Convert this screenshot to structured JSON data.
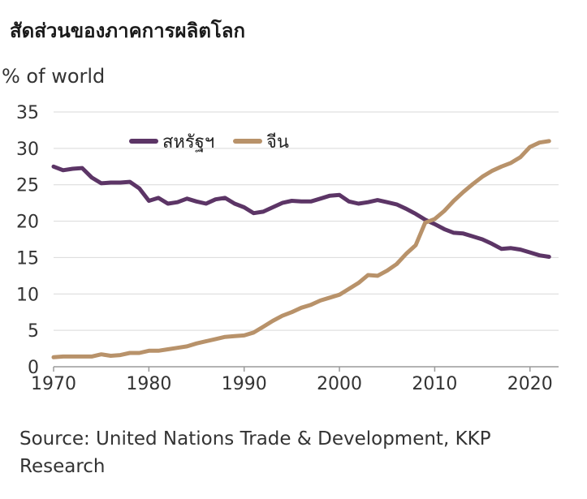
{
  "title": "สัดส่วนของภาคการผลิตโลก",
  "ylabel": "% of world",
  "source": "Source: United Nations Trade & Development, KKP Research",
  "chart_data": {
    "type": "line",
    "xlim": [
      1970,
      2023
    ],
    "ylim": [
      0,
      35
    ],
    "x_ticks": [
      1970,
      1980,
      1990,
      2000,
      2010,
      2020
    ],
    "y_ticks": [
      0,
      5,
      10,
      15,
      20,
      25,
      30,
      35
    ],
    "grid": "horizontal",
    "legend_position": "top-center",
    "x": [
      1970,
      1971,
      1972,
      1973,
      1974,
      1975,
      1976,
      1977,
      1978,
      1979,
      1980,
      1981,
      1982,
      1983,
      1984,
      1985,
      1986,
      1987,
      1988,
      1989,
      1990,
      1991,
      1992,
      1993,
      1994,
      1995,
      1996,
      1997,
      1998,
      1999,
      2000,
      2001,
      2002,
      2003,
      2004,
      2005,
      2006,
      2007,
      2008,
      2009,
      2010,
      2011,
      2012,
      2013,
      2014,
      2015,
      2016,
      2017,
      2018,
      2019,
      2020,
      2021,
      2022
    ],
    "series": [
      {
        "name": "สหรัฐฯ",
        "color": "#5c3566",
        "values": [
          27.5,
          27.0,
          27.2,
          27.3,
          26.0,
          25.2,
          25.3,
          25.3,
          25.4,
          24.5,
          22.8,
          23.2,
          22.4,
          22.6,
          23.1,
          22.7,
          22.4,
          23.0,
          23.2,
          22.4,
          21.9,
          21.1,
          21.3,
          21.9,
          22.5,
          22.8,
          22.7,
          22.7,
          23.1,
          23.5,
          23.6,
          22.7,
          22.4,
          22.6,
          22.9,
          22.6,
          22.3,
          21.7,
          21.0,
          20.2,
          19.6,
          18.9,
          18.4,
          18.3,
          17.9,
          17.5,
          16.9,
          16.2,
          16.3,
          16.1,
          15.7,
          15.3,
          15.1
        ]
      },
      {
        "name": "จีน",
        "color": "#b8926a",
        "values": [
          1.3,
          1.4,
          1.4,
          1.4,
          1.4,
          1.7,
          1.5,
          1.6,
          1.9,
          1.9,
          2.2,
          2.2,
          2.4,
          2.6,
          2.8,
          3.2,
          3.5,
          3.8,
          4.1,
          4.2,
          4.3,
          4.7,
          5.5,
          6.3,
          7.0,
          7.5,
          8.1,
          8.5,
          9.1,
          9.5,
          9.9,
          10.7,
          11.5,
          12.6,
          12.5,
          13.2,
          14.1,
          15.5,
          16.7,
          19.8,
          20.3,
          21.4,
          22.8,
          24.0,
          25.1,
          26.1,
          26.9,
          27.5,
          28.0,
          28.8,
          30.2,
          30.8,
          31.0
        ]
      }
    ]
  }
}
